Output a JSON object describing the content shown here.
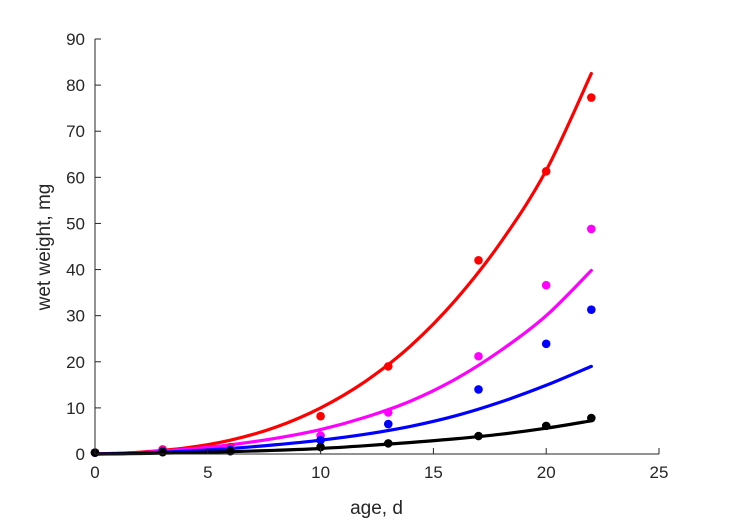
{
  "chart_data": {
    "type": "scatter",
    "title": "",
    "xlabel": "age, d",
    "ylabel": "wet weight, mg",
    "xlim": [
      0,
      25
    ],
    "ylim": [
      0,
      90
    ],
    "xticks": [
      0,
      5,
      10,
      15,
      20,
      25
    ],
    "yticks": [
      0,
      10,
      20,
      30,
      40,
      50,
      60,
      70,
      80,
      90
    ],
    "grid": false,
    "legend": "none",
    "axis_color": "#262626",
    "series": [
      {
        "color": "#ff0000",
        "points": {
          "x": [
            0,
            3,
            6,
            10,
            13,
            17,
            20,
            22
          ],
          "y": [
            0.3,
            1.0,
            1.5,
            8.2,
            19.0,
            42.0,
            61.3,
            77.3
          ]
        },
        "fit": {
          "x": [
            0,
            2,
            4,
            6,
            8,
            10,
            12,
            14,
            16,
            18,
            20,
            22
          ],
          "y": [
            0,
            0.4,
            1.3,
            3.0,
            5.8,
            10.0,
            15.8,
            23.5,
            33.5,
            46.0,
            61.5,
            82.5
          ]
        }
      },
      {
        "color": "#ff00ff",
        "points": {
          "x": [
            0,
            3,
            6,
            10,
            13,
            17,
            20,
            22
          ],
          "y": [
            0.3,
            0.8,
            1.2,
            4.0,
            9.0,
            21.2,
            36.6,
            48.8
          ]
        },
        "fit": {
          "x": [
            0,
            2,
            4,
            6,
            8,
            10,
            12,
            14,
            16,
            18,
            20,
            22
          ],
          "y": [
            0,
            0.3,
            1.0,
            2.0,
            3.4,
            5.3,
            8.0,
            11.5,
            16.3,
            22.5,
            30.0,
            39.8
          ]
        }
      },
      {
        "color": "#0000ff",
        "points": {
          "x": [
            0,
            3,
            6,
            10,
            13,
            17,
            20,
            22
          ],
          "y": [
            0.3,
            0.6,
            0.9,
            3.0,
            6.5,
            14.0,
            23.9,
            31.3
          ]
        },
        "fit": {
          "x": [
            0,
            2,
            4,
            6,
            8,
            10,
            12,
            14,
            16,
            18,
            20,
            22
          ],
          "y": [
            0,
            0.2,
            0.6,
            1.2,
            2.0,
            3.0,
            4.3,
            6.0,
            8.3,
            11.3,
            14.9,
            19.0
          ]
        }
      },
      {
        "color": "#000000",
        "points": {
          "x": [
            0,
            3,
            6,
            10,
            13,
            17,
            20,
            22
          ],
          "y": [
            0.3,
            0.4,
            0.6,
            1.5,
            2.3,
            3.9,
            6.1,
            7.8
          ]
        },
        "fit": {
          "x": [
            0,
            2,
            4,
            6,
            8,
            10,
            12,
            14,
            16,
            18,
            20,
            22
          ],
          "y": [
            0,
            0.1,
            0.3,
            0.5,
            0.8,
            1.2,
            1.8,
            2.5,
            3.3,
            4.3,
            5.6,
            7.2
          ]
        }
      }
    ]
  }
}
